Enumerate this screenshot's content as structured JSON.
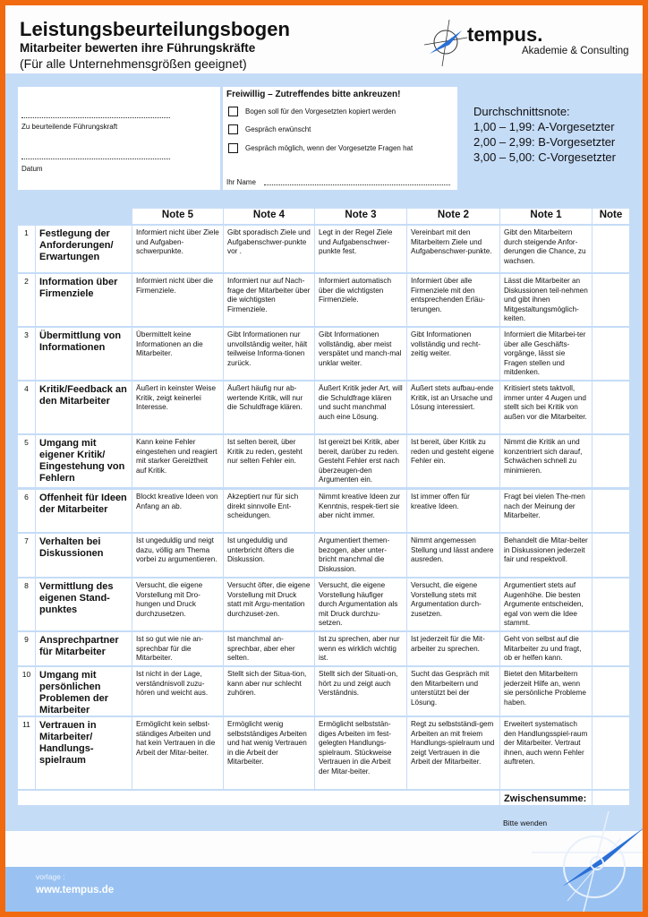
{
  "header": {
    "title": "Leistungsbeurteilungsbogen",
    "subtitle": "Mitarbeiter bewerten ihre Führungskräfte",
    "note": "(Für alle Unternehmensgrößen geeignet)",
    "logo_name": "tempus.",
    "logo_tagline": "Akademie & Consulting"
  },
  "form": {
    "leader_label": "Zu beurteilende Führungskraft",
    "date_label": "Datum",
    "optional_title": "Freiwillig – Zutreffendes bitte ankreuzen!",
    "options": [
      "Bogen soll für den Vorgesetzten kopiert werden",
      "Gespräch erwünscht",
      "Gespräch möglich, wenn der Vorgesetzte Fragen hat"
    ],
    "name_label": "Ihr Name"
  },
  "scale": {
    "title": "Durchschnittsnote:",
    "lines": [
      "1,00 – 1,99: A-Vorgesetzter",
      "2,00 – 2,99: B-Vorgesetzter",
      "3,00 – 5,00: C-Vorgesetzter"
    ]
  },
  "table": {
    "columns": [
      "Note 5",
      "Note 4",
      "Note 3",
      "Note 2",
      "Note 1",
      "Note"
    ],
    "rows": [
      {
        "n": "1",
        "c": "Festlegung der Anforderungen/ Erwartungen",
        "v": [
          "Informiert nicht über Ziele und Aufgaben-schwerpunkte.",
          "Gibt sporadisch Ziele und Aufgabenschwer-punkte vor .",
          "Legt in der Regel Ziele und Aufgabenschwer-punkte fest.",
          "Vereinbart mit den Mitarbeitern Ziele und Aufgabenschwer-punkte.",
          "Gibt den Mitarbeitern durch steigende Anfor-derungen die Chance, zu wachsen."
        ]
      },
      {
        "n": "2",
        "c": "Information über Firmenziele",
        "v": [
          "Informiert nicht über die Firmenziele.",
          "Informiert nur auf Nach-frage der Mitarbeiter über die wichtigsten Firmenziele.",
          "Informiert automatisch über die wichtigsten Firmenziele.",
          "Informiert über alle Firmenziele mit den entsprechenden Erläu-terungen.",
          "Lässt die Mitarbeiter an Diskussionen teil-nehmen und gibt ihnen Mitgestaltungsmöglich-keiten."
        ]
      },
      {
        "n": "3",
        "c": "Übermittlung von Informationen",
        "v": [
          "Übermittelt keine Informationen an die Mitarbeiter.",
          "Gibt Informationen nur unvollständig weiter, hält teilweise Informa-tionen zurück.",
          "Gibt Informationen vollständig, aber meist verspätet und manch-mal unklar weiter.",
          "Gibt Informationen vollständig und recht-zeitig weiter.",
          "Informiert die Mitarbei-ter über alle Geschäfts-vorgänge, lässt sie Fragen stellen und mitdenken."
        ]
      },
      {
        "n": "4",
        "c": "Kritik/Feedback an den Mitarbeiter",
        "v": [
          "Äußert in keinster Weise Kritik, zeigt keinerlei Interesse.",
          "Äußert häufig nur ab-wertende Kritik, will nur die Schuldfrage klären.",
          "Äußert Kritik jeder Art, will die Schuldfrage klären und sucht manchmal auch eine Lösung.",
          "Äußert stets aufbau-ende Kritik, ist an Ursache und Lösung interessiert.",
          "Kritisiert stets taktvoll, immer unter 4 Augen und stellt sich bei Kritik von außen vor die Mitarbeiter."
        ]
      },
      {
        "n": "5",
        "c": "Umgang mit eigener Kritik/ Eingestehung von Fehlern",
        "v": [
          "Kann keine Fehler eingestehen und reagiert mit starker Gereiztheit auf Kritik.",
          "Ist selten bereit, über Kritik zu reden, gesteht nur selten Fehler ein.",
          "Ist gereizt bei Kritik, aber bereit, darüber zu reden. Gesteht Fehler erst nach überzeugen-den Argumenten ein.",
          "Ist bereit, über Kritik zu reden und gesteht eigene Fehler ein.",
          "Nimmt die Kritik an und konzentriert sich darauf, Schwächen schnell zu minimieren."
        ]
      },
      {
        "n": "6",
        "c": "Offenheit für Ideen der Mitarbeiter",
        "v": [
          "Blockt kreative Ideen von Anfang an ab.",
          "Akzeptiert nur für sich direkt sinnvolle Ent-scheidungen.",
          "Nimmt kreative Ideen zur Kenntnis, respek-tiert sie aber nicht immer.",
          "Ist immer offen für kreative Ideen.",
          "Fragt bei vielen The-men nach der Meinung der Mitarbeiter."
        ]
      },
      {
        "n": "7",
        "c": "Verhalten bei Diskussionen",
        "v": [
          "Ist ungeduldig und neigt dazu, völlig am Thema vorbei zu argumentieren.",
          "Ist ungeduldig und unterbricht öfters die Diskussion.",
          "Argumentiert themen-bezogen, aber unter-bricht manchmal die Diskussion.",
          "Nimmt angemessen Stellung und lässt andere ausreden.",
          "Behandelt die Mitar-beiter in Diskussionen jederzeit fair und respektvoll."
        ]
      },
      {
        "n": "8",
        "c": "Vermittlung des eigenen Stand-punktes",
        "v": [
          "Versucht, die eigene Vorstellung mit Dro-hungen und Druck durchzusetzen.",
          "Versucht öfter, die eigene Vorstellung mit Druck statt mit Argu-mentation durchzuset-zen.",
          "Versucht, die eigene Vorstellung häufiger durch Argumentation als mit Druck durchzu-setzen.",
          "Versucht, die eigene Vorstellung stets mit Argumentation durch-zusetzen.",
          "Argumentiert stets auf Augenhöhe. Die besten Argumente entscheiden, egal von wem die Idee stammt."
        ]
      },
      {
        "n": "9",
        "c": "Ansprechpartner für Mitarbeiter",
        "v": [
          "Ist so gut wie nie an-sprechbar für die Mitarbeiter.",
          "Ist manchmal an-sprechbar, aber eher selten.",
          "Ist zu sprechen, aber nur wenn es wirklich wichtig ist.",
          "Ist jederzeit für die Mit-arbeiter zu sprechen.",
          "Geht von selbst auf die Mitarbeiter zu und fragt, ob er helfen kann."
        ]
      },
      {
        "n": "10",
        "c": "Umgang mit persönlichen Problemen der Mitarbeiter",
        "v": [
          "Ist nicht in der Lage, verständnisvoll zuzu-hören und weicht aus.",
          "Stellt sich der Situa-tion, kann aber nur schlecht zuhören.",
          "Stellt sich der Situati-on, hört zu und zeigt auch Verständnis.",
          "Sucht das Gespräch mit den Mitarbeitern und unterstützt bei der Lösung.",
          "Bietet den Mitarbeitern jederzeit Hilfe an, wenn sie persönliche Probleme haben."
        ]
      },
      {
        "n": "11",
        "c": "Vertrauen in Mitarbeiter/ Handlungs-spielraum",
        "v": [
          "Ermöglicht kein selbst-ständiges Arbeiten und hat kein Vertrauen in die Arbeit der Mitar-beiter.",
          "Ermöglicht wenig selbstständiges Arbeiten und hat wenig Vertrauen in die Arbeit der Mitarbeiter.",
          "Ermöglicht selbststän-diges Arbeiten im fest-gelegten Handlungs-spielraum. Stückweise Vertrauen in die Arbeit der Mitar-beiter.",
          "Regt zu selbstständi-gem Arbeiten an mit freiem Handlungs-spielraum und zeigt Vertrauen in die Arbeit der Mitarbeiter.",
          "Erweitert systematisch den Handlungsspiel-raum der Mitarbeiter. Vertraut ihnen, auch wenn Fehler auftreten."
        ]
      }
    ],
    "subtotal_label": "Zwischensumme:"
  },
  "bottom": {
    "turn_page": "Bitte wenden",
    "vorlage": "vorlage :",
    "website": "www.tempus.de"
  },
  "colors": {
    "border": "#f26a10",
    "band": "#c5dcf7",
    "footer": "#99c2f2",
    "compass": "#2a6fd6"
  }
}
